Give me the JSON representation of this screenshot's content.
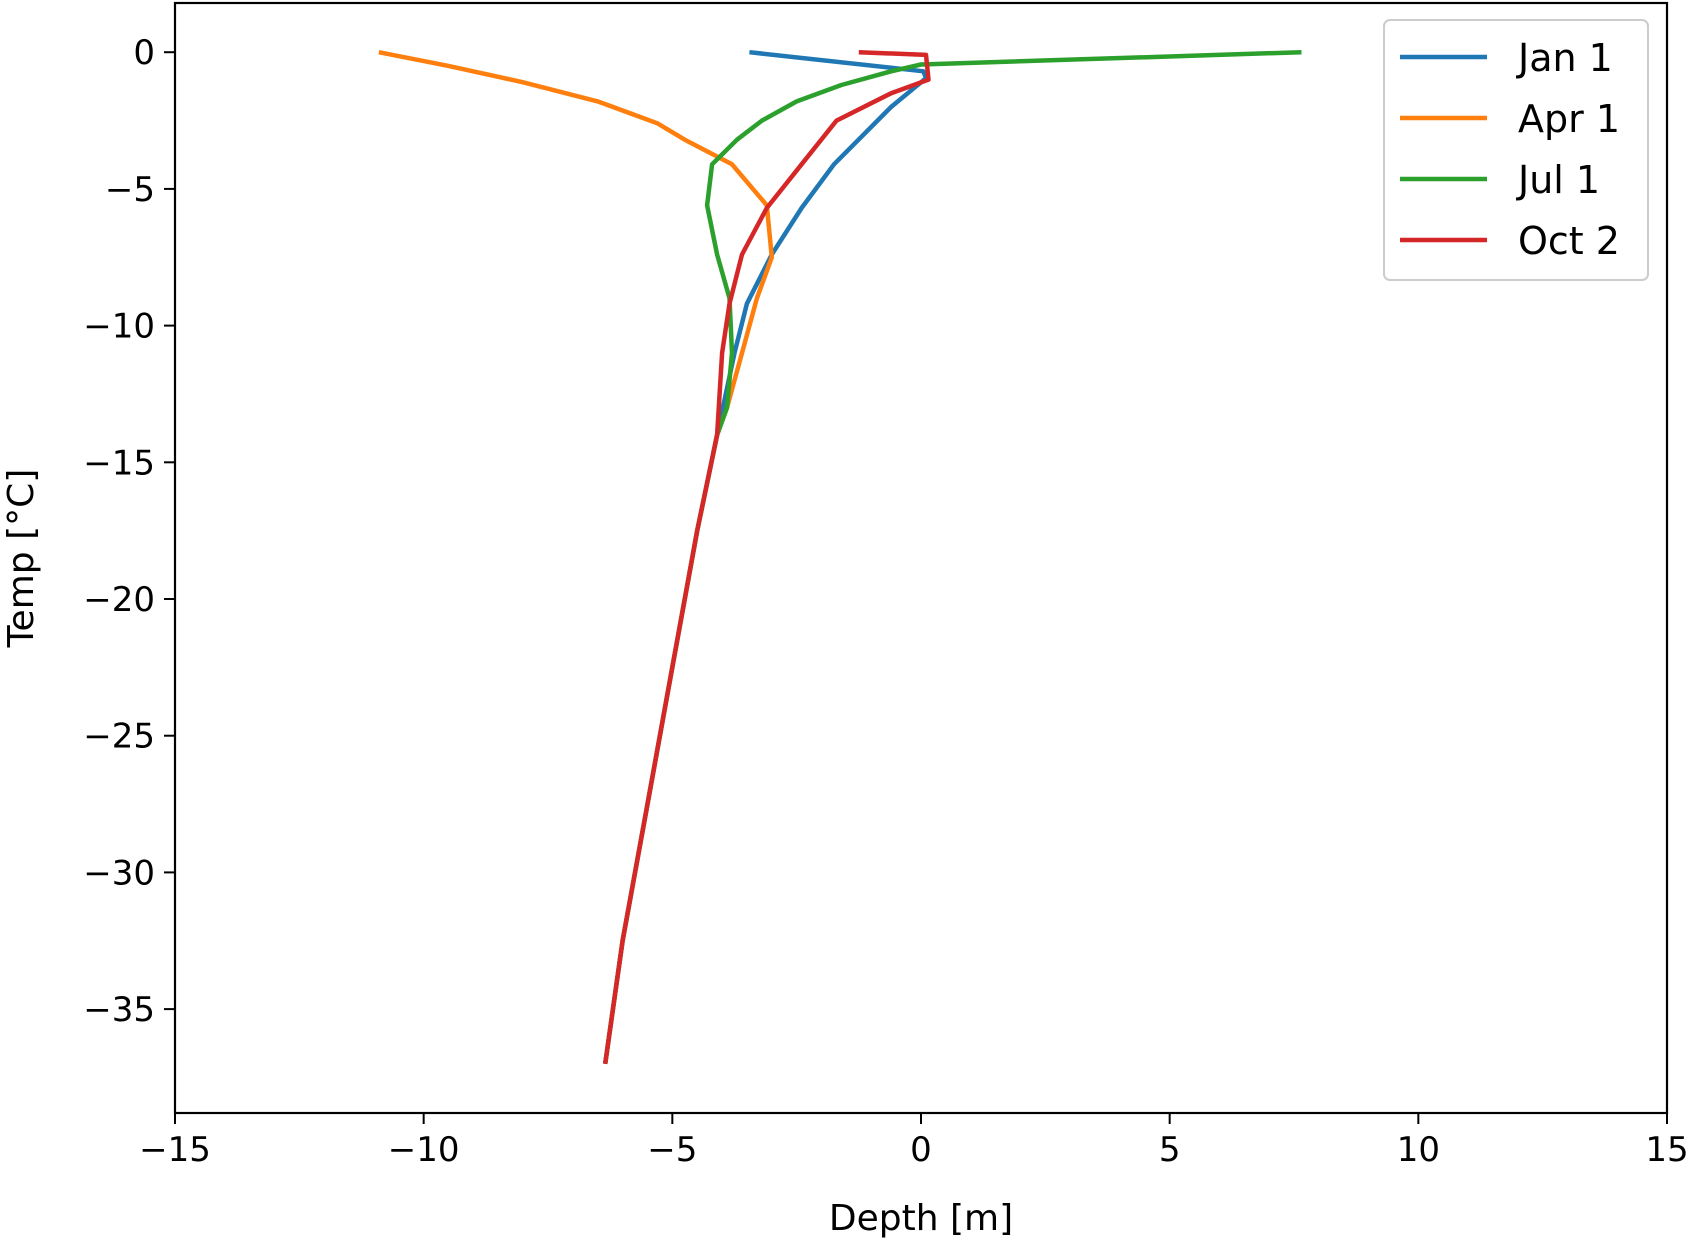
{
  "chart_data": {
    "type": "line",
    "xlabel": "Depth [m]",
    "ylabel": "Temp [°C]",
    "xlim": [
      -15,
      15
    ],
    "ylim": [
      -38.8,
      1.8
    ],
    "x_ticks": [
      -15,
      -10,
      -5,
      0,
      5,
      10,
      15
    ],
    "x_tick_labels": [
      "−15",
      "−10",
      "−5",
      "0",
      "5",
      "10",
      "15"
    ],
    "y_ticks": [
      0,
      -5,
      -10,
      -15,
      -20,
      -25,
      -30,
      -35
    ],
    "y_tick_labels": [
      "0",
      "−5",
      "−10",
      "−15",
      "−20",
      "−25",
      "−30",
      "−35"
    ],
    "grid": false,
    "legend_position": "top-right",
    "series": [
      {
        "name": "Jan 1",
        "color": "#1f77b4",
        "points": [
          [
            -3.45,
            0
          ],
          [
            0.05,
            -0.7
          ],
          [
            0.1,
            -0.95
          ],
          [
            -0.6,
            -2.0
          ],
          [
            -1.75,
            -4.1
          ],
          [
            -2.4,
            -5.7
          ],
          [
            -3.0,
            -7.4
          ],
          [
            -3.5,
            -9.2
          ],
          [
            -3.75,
            -11.0
          ],
          [
            -4.1,
            -14.0
          ],
          [
            -4.5,
            -17.5
          ],
          [
            -5.0,
            -22.5
          ],
          [
            -5.5,
            -27.5
          ],
          [
            -6.0,
            -32.5
          ],
          [
            -6.35,
            -37.0
          ]
        ]
      },
      {
        "name": "Apr 1",
        "color": "#ff7f0e",
        "points": [
          [
            -10.9,
            0
          ],
          [
            -9.5,
            -0.5
          ],
          [
            -8.0,
            -1.1
          ],
          [
            -6.5,
            -1.8
          ],
          [
            -5.3,
            -2.6
          ],
          [
            -4.75,
            -3.2
          ],
          [
            -3.8,
            -4.1
          ],
          [
            -3.1,
            -5.6
          ],
          [
            -3.0,
            -7.5
          ],
          [
            -3.3,
            -9.0
          ],
          [
            -3.6,
            -11.0
          ],
          [
            -3.9,
            -13.0
          ],
          [
            -4.1,
            -14.0
          ],
          [
            -4.5,
            -17.5
          ],
          [
            -5.0,
            -22.5
          ],
          [
            -5.5,
            -27.5
          ],
          [
            -6.0,
            -32.5
          ],
          [
            -6.35,
            -37.0
          ]
        ]
      },
      {
        "name": "Jul 1",
        "color": "#2ca02c",
        "points": [
          [
            7.65,
            0
          ],
          [
            0,
            -0.45
          ],
          [
            -0.6,
            -0.7
          ],
          [
            -1.6,
            -1.2
          ],
          [
            -2.5,
            -1.8
          ],
          [
            -3.2,
            -2.5
          ],
          [
            -3.7,
            -3.2
          ],
          [
            -4.2,
            -4.1
          ],
          [
            -4.3,
            -5.6
          ],
          [
            -4.1,
            -7.4
          ],
          [
            -3.85,
            -9.0
          ],
          [
            -3.8,
            -11.0
          ],
          [
            -3.9,
            -13.0
          ],
          [
            -4.1,
            -14.0
          ],
          [
            -4.5,
            -17.5
          ],
          [
            -5.0,
            -22.5
          ],
          [
            -5.5,
            -27.5
          ],
          [
            -6.0,
            -32.5
          ],
          [
            -6.35,
            -37.0
          ]
        ]
      },
      {
        "name": "Oct 2",
        "color": "#d62728",
        "points": [
          [
            -1.25,
            0
          ],
          [
            0.1,
            -0.1
          ],
          [
            0.15,
            -1.0
          ],
          [
            -0.6,
            -1.5
          ],
          [
            -1.7,
            -2.5
          ],
          [
            -2.4,
            -4.1
          ],
          [
            -3.1,
            -5.7
          ],
          [
            -3.6,
            -7.4
          ],
          [
            -3.85,
            -9.2
          ],
          [
            -4.0,
            -11.0
          ],
          [
            -4.1,
            -14.0
          ],
          [
            -4.5,
            -17.5
          ],
          [
            -5.0,
            -22.5
          ],
          [
            -5.5,
            -27.5
          ],
          [
            -6.0,
            -32.5
          ],
          [
            -6.35,
            -37.0
          ]
        ]
      }
    ]
  }
}
